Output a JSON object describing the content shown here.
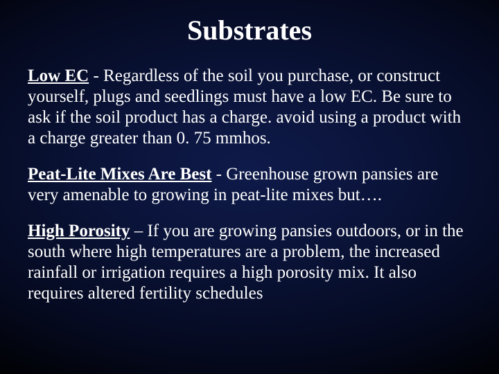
{
  "title": {
    "text": "Substrates",
    "fontsize": 40,
    "color": "#ffffff"
  },
  "body_fontsize": 25,
  "body_color": "#ffffff",
  "paragraphs": [
    {
      "lead": "Low EC",
      "rest": "  - Regardless of the soil you purchase, or construct yourself, plugs and seedlings must have a low EC.  Be sure to ask if the soil product has a charge.   avoid using a product with a charge greater than 0. 75 mmhos."
    },
    {
      "lead": "Peat-Lite Mixes Are Best",
      "rest": "  - Greenhouse grown pansies are very amenable to growing in peat-lite mixes but…."
    },
    {
      "lead": "High Porosity",
      "rest": " – If you are growing pansies outdoors, or in the south where high temperatures are a problem, the increased rainfall or irrigation requires a high porosity mix.  It also requires altered fertility schedules"
    }
  ]
}
